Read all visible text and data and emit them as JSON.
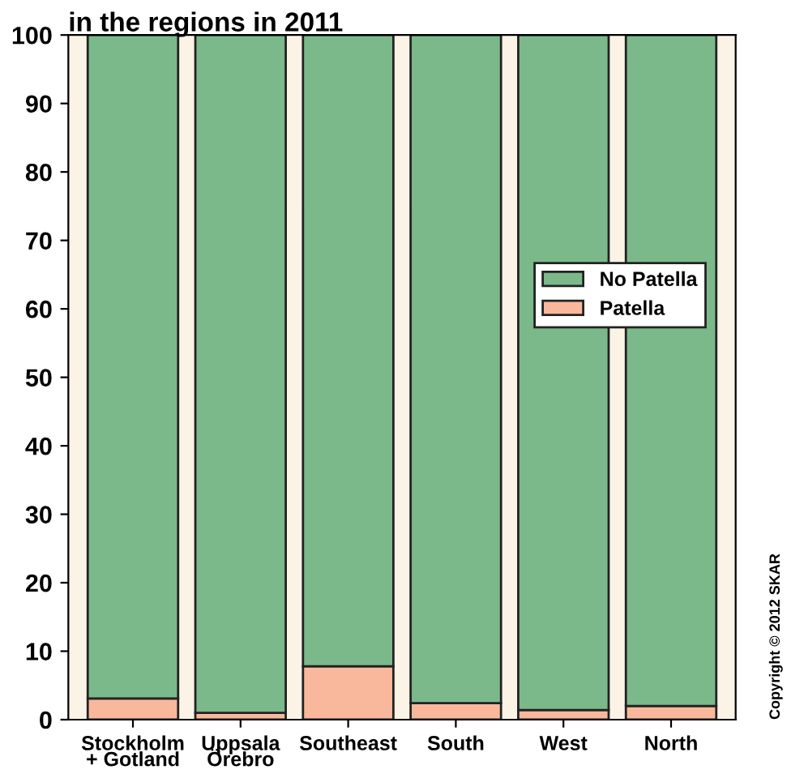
{
  "chart_data": {
    "type": "bar",
    "title": "in the regions in 2011",
    "stacked": true,
    "categories": [
      "Stockholm\n+ Gotland",
      "Uppsala\nÖrebro",
      "Southeast",
      "South",
      "West",
      "North"
    ],
    "series": [
      {
        "name": "Patella",
        "color": "#f9b89c",
        "values": [
          3.1,
          1.0,
          7.8,
          2.4,
          1.4,
          2.0
        ]
      },
      {
        "name": "No Patella",
        "color": "#7bb98b",
        "values": [
          96.9,
          99.0,
          92.2,
          97.6,
          98.6,
          98.0
        ]
      }
    ],
    "ylim": [
      0,
      100
    ],
    "yticks": [
      0,
      10,
      20,
      30,
      40,
      50,
      60,
      70,
      80,
      90,
      100
    ],
    "grid": false,
    "legend": "right",
    "annotations": [
      "Copyright © 2012 SKAR"
    ]
  }
}
